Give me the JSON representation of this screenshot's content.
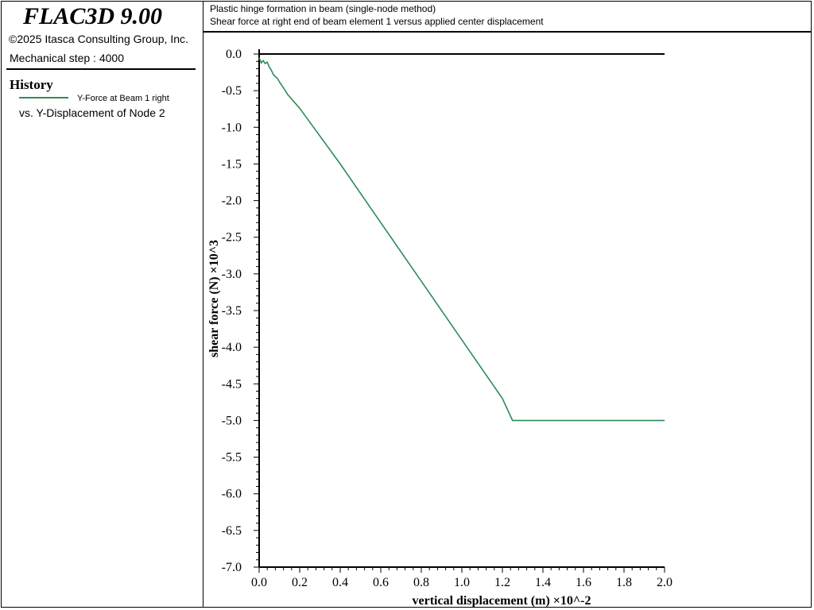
{
  "sidebar": {
    "app_title": "FLAC3D 9.00",
    "copyright": "©2025 Itasca Consulting Group, Inc.",
    "step_text": "Mechanical step : 4000",
    "history_heading": "History",
    "legend_series": "Y-Force at Beam 1 right",
    "legend_vs": "vs. Y-Displacement of Node 2"
  },
  "header": {
    "line1": "Plastic hinge formation in beam (single-node method)",
    "line2": "Shear force at right end of beam element 1 versus applied center displacement"
  },
  "chart_data": {
    "type": "line",
    "xlabel": "vertical displacement (m) ×10^-2",
    "ylabel": "shear force (N) ×10^3",
    "xlim": [
      0.0,
      2.0
    ],
    "ylim": [
      -7.0,
      0.0
    ],
    "x_ticks": [
      "0.0",
      "0.2",
      "0.4",
      "0.6",
      "0.8",
      "1.0",
      "1.2",
      "1.4",
      "1.6",
      "1.8",
      "2.0"
    ],
    "y_ticks": [
      "0.0",
      "-0.5",
      "-1.0",
      "-1.5",
      "-2.0",
      "-2.5",
      "-3.0",
      "-3.5",
      "-4.0",
      "-4.5",
      "-5.0",
      "-5.5",
      "-6.0",
      "-6.5",
      "-7.0"
    ],
    "reference_line_y": 0.0,
    "series": [
      {
        "name": "Y-Force at Beam 1 right",
        "color": "#2e8b57",
        "x": [
          0.0,
          0.01,
          0.02,
          0.03,
          0.04,
          0.05,
          0.06,
          0.07,
          0.08,
          0.09,
          0.1,
          0.12,
          0.14,
          0.2,
          0.4,
          0.6,
          0.8,
          1.0,
          1.2,
          1.25,
          1.4,
          1.6,
          1.8,
          2.0
        ],
        "y": [
          -0.05,
          -0.12,
          -0.09,
          -0.13,
          -0.11,
          -0.18,
          -0.22,
          -0.28,
          -0.31,
          -0.33,
          -0.38,
          -0.46,
          -0.55,
          -0.74,
          -1.5,
          -2.3,
          -3.1,
          -3.9,
          -4.7,
          -5.0,
          -5.0,
          -5.0,
          -5.0,
          -5.0
        ]
      }
    ]
  }
}
